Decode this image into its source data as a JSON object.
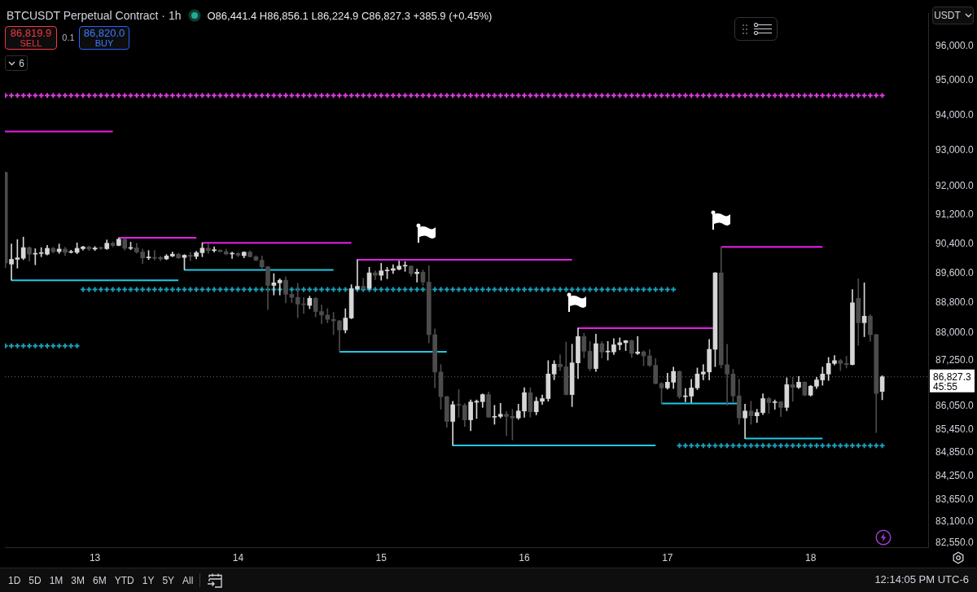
{
  "chart_data": {
    "type": "candlestick",
    "title": "BTCUSDT Perpetual Contract · 1h",
    "subtitle": "O86,441.4 H86,856.1 L86,224.9 C86,827.3 +385.9 (+0.45%)",
    "annotations": [
      "86,819.9",
      "SELL",
      "0.1",
      "86,820.0",
      "BUY",
      "6",
      "USDT",
      "45:55",
      "1D",
      "5D",
      "1M",
      "3M",
      "6M",
      "YTD",
      "1Y",
      "5Y",
      "All",
      "12:14:05 PM UTC-6"
    ],
    "x": [
      12.375,
      12.4167,
      12.4583,
      12.5,
      12.5417,
      12.5833,
      12.625,
      12.6667,
      12.7083,
      12.75,
      12.7917,
      12.8333,
      12.875,
      12.9167,
      12.9583,
      13,
      13.0417,
      13.0833,
      13.125,
      13.1667,
      13.2083,
      13.25,
      13.2917,
      13.3333,
      13.375,
      13.4167,
      13.4583,
      13.5,
      13.5417,
      13.5833,
      13.625,
      13.6667,
      13.7083,
      13.75,
      13.7917,
      13.8333,
      13.875,
      13.9167,
      13.9583,
      14,
      14.0417,
      14.0833,
      14.125,
      14.1667,
      14.2083,
      14.25,
      14.2917,
      14.3333,
      14.375,
      14.4167,
      14.4583,
      14.5,
      14.5417,
      14.5833,
      14.625,
      14.6667,
      14.7083,
      14.75,
      14.7917,
      14.8333,
      14.875,
      14.9167,
      14.9583,
      15,
      15.0417,
      15.0833,
      15.125,
      15.1667,
      15.2083,
      15.25,
      15.2917,
      15.3333,
      15.375,
      15.4167,
      15.4583,
      15.5,
      15.5417,
      15.5833,
      15.625,
      15.6667,
      15.7083,
      15.75,
      15.7917,
      15.8333,
      15.875,
      15.9167,
      15.9583,
      16,
      16.0417,
      16.0833,
      16.125,
      16.1667,
      16.2083,
      16.25,
      16.2917,
      16.3333,
      16.375,
      16.4167,
      16.4583,
      16.5,
      16.5417,
      16.5833,
      16.625,
      16.6667,
      16.7083,
      16.75,
      16.7917,
      16.8333,
      16.875,
      16.9167,
      16.9583,
      17,
      17.0417,
      17.0833,
      17.125,
      17.1667,
      17.2083,
      17.25,
      17.2917,
      17.3333,
      17.375,
      17.4167,
      17.4583,
      17.5,
      17.5417,
      17.5833,
      17.625,
      17.6667,
      17.7083,
      17.75,
      17.7917,
      17.8333,
      17.875,
      17.9167,
      17.9583,
      18,
      18.0417,
      18.0833,
      18.125,
      18.1667,
      18.2083,
      18.25,
      18.2917,
      18.3333,
      18.375,
      18.4167,
      18.4583,
      18.5
    ],
    "ohlc": [
      [
        92380,
        92400,
        89750,
        89880
      ],
      [
        89850,
        90400,
        89410,
        89980
      ],
      [
        89980,
        90520,
        89740,
        90020
      ],
      [
        90010,
        90590,
        89970,
        90300
      ],
      [
        90300,
        90320,
        89930,
        90120
      ],
      [
        90120,
        90270,
        89830,
        90140
      ],
      [
        90140,
        90300,
        90050,
        90150
      ],
      [
        90120,
        90360,
        90100,
        90280
      ],
      [
        90280,
        90310,
        90150,
        90190
      ],
      [
        90190,
        90400,
        90140,
        90260
      ],
      [
        90260,
        90310,
        90080,
        90170
      ],
      [
        90170,
        90230,
        90150,
        90170
      ],
      [
        90170,
        90430,
        90130,
        90280
      ],
      [
        90270,
        90340,
        90230,
        90320
      ],
      [
        90320,
        90340,
        90220,
        90260
      ],
      [
        90260,
        90330,
        90220,
        90290
      ],
      [
        90290,
        90310,
        90250,
        90280
      ],
      [
        90270,
        90510,
        90250,
        90420
      ],
      [
        90420,
        90460,
        90320,
        90360
      ],
      [
        90360,
        90570,
        90350,
        90530
      ],
      [
        90530,
        90550,
        90230,
        90280
      ],
      [
        90280,
        90450,
        90240,
        90290
      ],
      [
        90290,
        90420,
        90150,
        90180
      ],
      [
        90180,
        90260,
        89860,
        90020
      ],
      [
        90020,
        90220,
        89970,
        90020
      ],
      [
        90020,
        90220,
        89960,
        90010
      ],
      [
        90030,
        90060,
        89940,
        89990
      ],
      [
        89990,
        90110,
        89970,
        90070
      ],
      [
        90070,
        90180,
        90050,
        90120
      ],
      [
        90120,
        90150,
        90000,
        90020
      ],
      [
        90030,
        90110,
        89690,
        90090
      ],
      [
        90090,
        90175,
        89940,
        90060
      ],
      [
        90060,
        90200,
        89990,
        90160
      ],
      [
        90160,
        90430,
        90050,
        90285
      ],
      [
        90285,
        90400,
        90140,
        90220
      ],
      [
        90220,
        90320,
        90175,
        90230
      ],
      [
        90230,
        90240,
        90180,
        90190
      ],
      [
        90190,
        90260,
        90100,
        90125
      ],
      [
        90125,
        90175,
        90000,
        90140
      ],
      [
        90140,
        90175,
        90050,
        90090
      ],
      [
        90080,
        90190,
        90020,
        90175
      ],
      [
        90175,
        90210,
        90040,
        90050
      ],
      [
        90050,
        90080,
        89940,
        89955
      ],
      [
        89955,
        90070,
        89720,
        89775
      ],
      [
        89775,
        89790,
        88620,
        89270
      ],
      [
        89270,
        89590,
        89010,
        89340
      ],
      [
        89340,
        89450,
        89010,
        89410
      ],
      [
        89410,
        89500,
        88800,
        89030
      ],
      [
        89030,
        89090,
        88800,
        88945
      ],
      [
        88945,
        89330,
        88400,
        88765
      ],
      [
        88765,
        88945,
        88515,
        88750
      ],
      [
        88730,
        88980,
        88640,
        88920
      ],
      [
        88920,
        88950,
        88420,
        88565
      ],
      [
        88565,
        88740,
        88240,
        88470
      ],
      [
        88470,
        88645,
        88265,
        88355
      ],
      [
        88355,
        88545,
        87945,
        88315
      ],
      [
        88315,
        88330,
        87490,
        88070
      ],
      [
        88070,
        88640,
        87990,
        88390
      ],
      [
        88390,
        89290,
        88370,
        89180
      ],
      [
        89180,
        89970,
        89150,
        89245
      ],
      [
        89245,
        89460,
        89160,
        89190
      ],
      [
        89190,
        89760,
        89160,
        89610
      ],
      [
        89610,
        89665,
        89425,
        89545
      ],
      [
        89545,
        89870,
        89410,
        89665
      ],
      [
        89665,
        89760,
        89450,
        89680
      ],
      [
        89680,
        89830,
        89590,
        89725
      ],
      [
        89710,
        89935,
        89690,
        89795
      ],
      [
        89795,
        89920,
        89650,
        89795
      ],
      [
        89795,
        89800,
        89520,
        89590
      ],
      [
        89590,
        89715,
        89360,
        89630
      ],
      [
        89630,
        89690,
        89270,
        89360
      ],
      [
        89360,
        89810,
        87730,
        87945
      ],
      [
        87945,
        88100,
        86540,
        86955
      ],
      [
        86955,
        87150,
        85975,
        86305
      ],
      [
        86305,
        86320,
        85505,
        85660
      ],
      [
        85660,
        86185,
        85035,
        86095
      ],
      [
        86095,
        86490,
        85770,
        86080
      ],
      [
        86080,
        86125,
        85525,
        85700
      ],
      [
        85700,
        86220,
        85420,
        86165
      ],
      [
        86160,
        86220,
        85735,
        86185
      ],
      [
        86175,
        86380,
        86025,
        86360
      ],
      [
        86360,
        86430,
        85760,
        85770
      ],
      [
        85770,
        86080,
        85585,
        85790
      ],
      [
        85790,
        86130,
        85750,
        85845
      ],
      [
        85845,
        85920,
        85290,
        85790
      ],
      [
        85790,
        85975,
        85180,
        85750
      ],
      [
        85750,
        86110,
        85710,
        85930
      ],
      [
        85930,
        86540,
        85770,
        86410
      ],
      [
        86410,
        86540,
        85770,
        85910
      ],
      [
        85910,
        86290,
        85830,
        86185
      ],
      [
        86185,
        86350,
        86100,
        86255
      ],
      [
        86255,
        87255,
        86185,
        86900
      ],
      [
        86900,
        87255,
        86750,
        87160
      ],
      [
        87160,
        87410,
        86990,
        87090
      ],
      [
        87090,
        87750,
        86350,
        86360
      ],
      [
        86360,
        87690,
        86045,
        87195
      ],
      [
        87195,
        88120,
        86780,
        87895
      ],
      [
        87895,
        87980,
        87330,
        87505
      ],
      [
        87505,
        87765,
        86990,
        87045
      ],
      [
        87045,
        87960,
        86970,
        87705
      ],
      [
        87705,
        87760,
        87320,
        87485
      ],
      [
        87485,
        87765,
        87270,
        87490
      ],
      [
        87485,
        87840,
        87415,
        87675
      ],
      [
        87675,
        87860,
        87540,
        87730
      ],
      [
        87730,
        87790,
        87520,
        87785
      ],
      [
        87785,
        87800,
        87340,
        87445
      ],
      [
        87445,
        87895,
        87415,
        87485
      ],
      [
        87485,
        87520,
        87120,
        87380
      ],
      [
        87380,
        87555,
        87095,
        87130
      ],
      [
        87130,
        87310,
        86640,
        86650
      ],
      [
        86650,
        86680,
        86125,
        86535
      ],
      [
        86535,
        86920,
        86500,
        86685
      ],
      [
        86685,
        87085,
        86520,
        86970
      ],
      [
        86970,
        86980,
        86255,
        86305
      ],
      [
        86305,
        86520,
        86170,
        86320
      ],
      [
        86320,
        86760,
        86150,
        86535
      ],
      [
        86535,
        87060,
        86490,
        86900
      ],
      [
        86900,
        87150,
        86745,
        86955
      ],
      [
        86955,
        87820,
        86745,
        87555
      ],
      [
        87555,
        89620,
        87095,
        89610
      ],
      [
        89610,
        90320,
        87060,
        87145
      ],
      [
        87145,
        87690,
        86080,
        86900
      ],
      [
        86900,
        87025,
        86150,
        86325
      ],
      [
        86325,
        86760,
        85585,
        85750
      ],
      [
        85750,
        86110,
        85215,
        85930
      ],
      [
        85930,
        86185,
        85585,
        85805
      ],
      [
        85805,
        85975,
        85630,
        85890
      ],
      [
        85890,
        86380,
        85835,
        86255
      ],
      [
        86255,
        86290,
        85870,
        86150
      ],
      [
        86150,
        86220,
        85975,
        86170
      ],
      [
        86170,
        86185,
        85785,
        86025
      ],
      [
        86025,
        86800,
        85940,
        86620
      ],
      [
        86620,
        86815,
        86185,
        86550
      ],
      [
        86550,
        86835,
        86520,
        86685
      ],
      [
        86685,
        86700,
        86325,
        86345
      ],
      [
        86345,
        86600,
        86320,
        86580
      ],
      [
        86580,
        86815,
        86520,
        86745
      ],
      [
        86745,
        87085,
        86605,
        86900
      ],
      [
        86900,
        87340,
        86730,
        87180
      ],
      [
        87180,
        87390,
        87140,
        87255
      ],
      [
        87255,
        87290,
        86990,
        87180
      ],
      [
        87180,
        87370,
        87060,
        87150
      ],
      [
        87150,
        89160,
        87140,
        88800
      ],
      [
        88920,
        89450,
        87660,
        88265
      ],
      [
        88265,
        89340,
        87890,
        88440
      ],
      [
        88440,
        88480,
        87765,
        87945
      ],
      [
        87945,
        87960,
        85370,
        86390
      ],
      [
        86441.4,
        86856.1,
        86224.9,
        86827.3
      ]
    ],
    "series": [
      {
        "type": "line",
        "x": [
          12.371,
          13.125
        ],
        "values": [
          93540,
          93540
        ],
        "color": "#e91ee9"
      },
      {
        "type": "line",
        "x": [
          13.1667,
          13.7083
        ],
        "values": [
          90570,
          90570
        ],
        "color": "#e91ee9"
      },
      {
        "type": "line",
        "x": [
          13.75,
          14.7917
        ],
        "values": [
          90430,
          90430
        ],
        "color": "#e91ee9"
      },
      {
        "type": "line",
        "x": [
          14.8333,
          16.3333
        ],
        "values": [
          89970,
          89970
        ],
        "color": "#e91ee9"
      },
      {
        "type": "line",
        "x": [
          16.375,
          17.318
        ],
        "values": [
          88120,
          88120
        ],
        "color": "#e91ee9"
      },
      {
        "type": "line",
        "x": [
          17.375,
          18.0833
        ],
        "values": [
          90320,
          90320
        ],
        "color": "#e91ee9"
      },
      {
        "type": "line",
        "x": [
          12.4167,
          13.5833
        ],
        "values": [
          89410,
          89410
        ],
        "color": "#1ec8e6"
      },
      {
        "type": "line",
        "x": [
          13.625,
          14.6667
        ],
        "values": [
          89690,
          89690
        ],
        "color": "#1ec8e6"
      },
      {
        "type": "line",
        "x": [
          14.7083,
          15.4583
        ],
        "values": [
          87490,
          87490
        ],
        "color": "#1ec8e6"
      },
      {
        "type": "line",
        "x": [
          15.5,
          16.9167
        ],
        "values": [
          85035,
          85035
        ],
        "color": "#1ec8e6"
      },
      {
        "type": "line",
        "x": [
          16.9583,
          17.485
        ],
        "values": [
          86125,
          86125
        ],
        "color": "#1ec8e6"
      },
      {
        "type": "line",
        "x": [
          17.5417,
          18.0833
        ],
        "values": [
          85215,
          85215
        ],
        "color": "#1ec8e6"
      },
      {
        "type": "scatter",
        "marker": "cross",
        "color": "#d83bd8",
        "values": [
          94570,
          94570,
          94570,
          94570,
          94570,
          94570,
          94570,
          94570,
          94570,
          94570,
          94570,
          94570,
          94570,
          94570,
          94570,
          94570,
          94570,
          94570,
          94570,
          94570,
          94570,
          94570,
          94570,
          94570,
          94570,
          94570,
          94570,
          94570,
          94570,
          94570,
          94570,
          94570,
          94570,
          94570,
          94570,
          94570,
          94570,
          94570,
          94570,
          94570,
          94570,
          94570,
          94570,
          94570,
          94570,
          94570,
          94570,
          94570,
          94570,
          94570,
          94570,
          94570,
          94570,
          94570,
          94570,
          94570,
          94570,
          94570,
          94570,
          94570,
          94570,
          94570,
          94570,
          94570,
          94570,
          94570,
          94570,
          94570,
          94570,
          94570,
          94570,
          94570,
          94570,
          94570,
          94570,
          94570,
          94570,
          94570,
          94570,
          94570,
          94570,
          94570,
          94570,
          94570,
          94570,
          94570,
          94570,
          94570,
          94570,
          94570,
          94570,
          94570,
          94570,
          94570,
          94570,
          94570,
          94570,
          94570,
          94570,
          94570,
          94570,
          94570,
          94570,
          94570,
          94570,
          94570,
          94570,
          94570,
          94570,
          94570,
          94570,
          94570,
          94570,
          94570,
          94570,
          94570,
          94570,
          94570,
          94570,
          94570,
          94570,
          94570,
          94570,
          94570,
          94570,
          94570,
          94570,
          94570,
          94570,
          94570,
          94570,
          94570,
          94570,
          94570,
          94570,
          94570,
          94570,
          94570,
          94570,
          94570,
          94570,
          94570,
          94570,
          94570,
          94570,
          94570,
          94570,
          94570
        ]
      },
      {
        "type": "scatter",
        "marker": "cross",
        "color": "#1b9fb8",
        "values": [
          87645,
          87645,
          87645,
          87645,
          87645,
          87645,
          87645,
          87645,
          87645,
          87645,
          87645,
          87645,
          87645,
          89160,
          89160,
          89160,
          89160,
          89160,
          89160,
          89160,
          89160,
          89160,
          89160,
          89160,
          89160,
          89160,
          89160,
          89160,
          89160,
          89160,
          89160,
          89160,
          89160,
          89160,
          89160,
          89160,
          89160,
          89160,
          89160,
          89160,
          89160,
          89160,
          89160,
          89160,
          89160,
          89160,
          89160,
          89160,
          89160,
          89160,
          89160,
          89160,
          89160,
          89160,
          89160,
          89160,
          89160,
          89160,
          89160,
          89160,
          89160,
          89160,
          89160,
          89160,
          89160,
          89160,
          89160,
          89160,
          89160,
          89160,
          89160,
          89160,
          89160,
          89160,
          89160,
          89160,
          89160,
          89160,
          89160,
          89160,
          89160,
          89160,
          89160,
          89160,
          89160,
          89160,
          89160,
          89160,
          89160,
          89160,
          89160,
          89160,
          89160,
          89160,
          89160,
          89160,
          89160,
          89160,
          89160,
          89160,
          89160,
          89160,
          89160,
          89160,
          89160,
          89160,
          89160,
          89160,
          89160,
          89160,
          89160,
          89160,
          89160,
          85030,
          85030,
          85030,
          85030,
          85030,
          85030,
          85030,
          85030,
          85030,
          85030,
          85030,
          85030,
          85030,
          85030,
          85030,
          85030,
          85030,
          85030,
          85030,
          85030,
          85030,
          85030,
          85030,
          85030,
          85030,
          85030,
          85030,
          85030,
          85030,
          85030,
          85030,
          85030,
          85030,
          85030,
          85030
        ]
      }
    ],
    "ref_lines": [
      {
        "axis": "y",
        "value": 86827.3,
        "label": "86,827.3",
        "color": "#6b6e78",
        "line_style": "dotted"
      }
    ],
    "xlim": [
      12.371,
      18.821
    ],
    "xticks": [
      13,
      14,
      15,
      16,
      17,
      18
    ],
    "ylim": [
      82450,
      96960
    ],
    "log": true,
    "yticks": [
      {
        "value": 96000,
        "label": "96,000.0"
      },
      {
        "value": 95000,
        "label": "95,000.0"
      },
      {
        "value": 94000,
        "label": "94,000.0"
      },
      {
        "value": 93000,
        "label": "93,000.0"
      },
      {
        "value": 92000,
        "label": "92,000.0"
      },
      {
        "value": 91200,
        "label": "91,200.0"
      },
      {
        "value": 90400,
        "label": "90,400.0"
      },
      {
        "value": 89600,
        "label": "89,600.0"
      },
      {
        "value": 88800,
        "label": "88,800.0"
      },
      {
        "value": 88000,
        "label": "88,000.0"
      },
      {
        "value": 87250,
        "label": "87,250.0"
      },
      {
        "value": 86050,
        "label": "86,050.0"
      },
      {
        "value": 85450,
        "label": "85,450.0"
      },
      {
        "value": 84850,
        "label": "84,850.0"
      },
      {
        "value": 84250,
        "label": "84,250.0"
      },
      {
        "value": 83650,
        "label": "83,650.0"
      },
      {
        "value": 83100,
        "label": "83,100.0"
      },
      {
        "value": 82550,
        "label": "82,550.0"
      }
    ]
  }
}
